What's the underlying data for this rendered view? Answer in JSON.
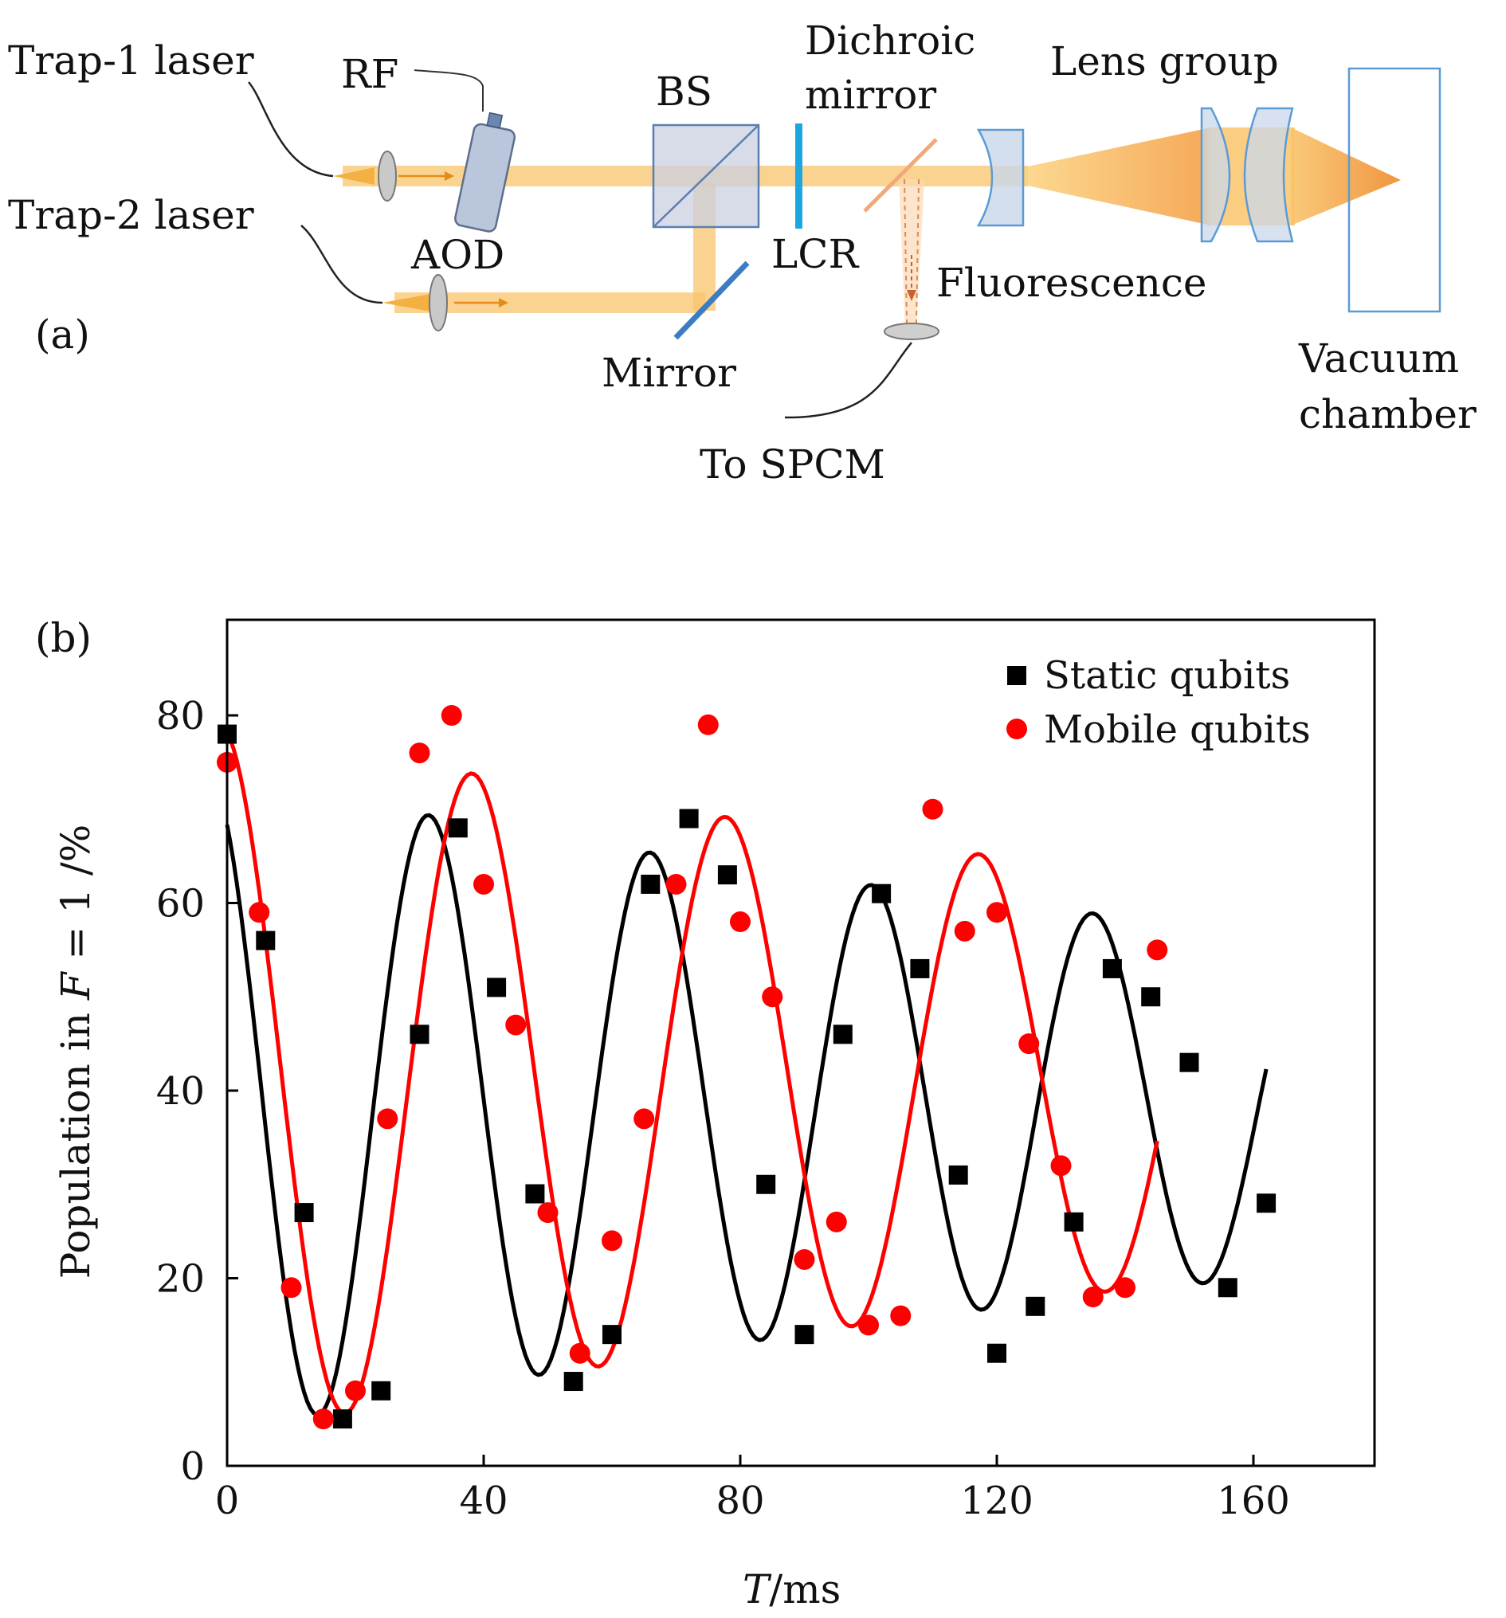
{
  "panel_a": {
    "tag": "(a)",
    "labels": {
      "trap1": "Trap-1 laser",
      "trap2": "Trap-2 laser",
      "rf": "RF",
      "aod": "AOD",
      "bs": "BS",
      "dichroic_line1": "Dichroic",
      "dichroic_line2": "mirror",
      "lens_group": "Lens group",
      "lcr": "LCR",
      "fluorescence": "Fluorescence",
      "mirror": "Mirror",
      "to_spcm": "To SPCM",
      "vacuum_line1": "Vacuum",
      "vacuum_line2": "chamber"
    },
    "colors": {
      "beam": "#f9c46b",
      "optics": "#5b9bd5",
      "optic_fill": "#c9d7ea",
      "rf_line": "#333333"
    }
  },
  "panel_b": {
    "tag": "(b)"
  },
  "chart_data": {
    "type": "scatter",
    "title": "",
    "xlabel": "T/ms",
    "ylabel": "Population in F = 1 /%",
    "xlim": [
      0,
      180
    ],
    "ylim": [
      0,
      90
    ],
    "xticks": [
      0,
      40,
      80,
      120,
      160
    ],
    "yticks": [
      0,
      20,
      40,
      60,
      80
    ],
    "legend_position": "top-right",
    "grid": false,
    "series": [
      {
        "name": "Static qubits",
        "marker": "square",
        "color": "#000000",
        "x": [
          0,
          6,
          12,
          18,
          24,
          30,
          36,
          42,
          48,
          54,
          60,
          66,
          72,
          78,
          84,
          90,
          96,
          102,
          108,
          114,
          120,
          126,
          132,
          138,
          144,
          150,
          156,
          162
        ],
        "y": [
          78,
          56,
          27,
          5,
          8,
          46,
          68,
          51,
          29,
          9,
          14,
          62,
          69,
          63,
          30,
          14,
          46,
          61,
          53,
          31,
          12,
          17,
          26,
          53,
          50,
          43,
          19,
          28
        ]
      },
      {
        "name": "Mobile qubits",
        "marker": "circle",
        "color": "#ff0000",
        "x": [
          0,
          5,
          10,
          15,
          20,
          25,
          30,
          35,
          40,
          45,
          50,
          55,
          60,
          65,
          70,
          75,
          80,
          85,
          90,
          95,
          100,
          105,
          110,
          115,
          120,
          125,
          130,
          135,
          140,
          145
        ],
        "y": [
          75,
          59,
          19,
          5,
          8,
          37,
          76,
          80,
          62,
          47,
          27,
          12,
          24,
          37,
          62,
          79,
          58,
          50,
          22,
          26,
          15,
          16,
          70,
          57,
          59,
          45,
          32,
          18,
          19,
          55
        ]
      }
    ],
    "fits": [
      {
        "color": "#000000",
        "amplitude": 35,
        "decay_ms": 250,
        "period_ms": 34.5,
        "phase_rad": 0.55,
        "offset": 38.5,
        "x_range": [
          0,
          162
        ]
      },
      {
        "color": "#ff0000",
        "amplitude": 38,
        "decay_ms": 260,
        "period_ms": 39.5,
        "phase_rad": 0.2,
        "offset": 41,
        "x_range": [
          0,
          145
        ]
      }
    ]
  }
}
